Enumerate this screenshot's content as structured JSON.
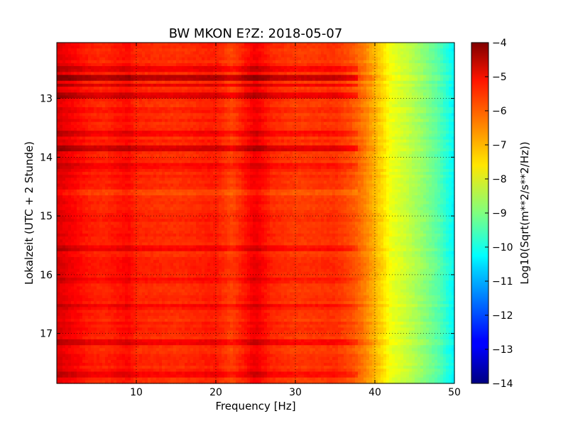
{
  "chart_data": {
    "type": "heatmap",
    "title": "BW MKON E?Z: 2018-05-07",
    "xlabel": "Frequency [Hz]",
    "ylabel": "Lokalzeit (UTC + 2 Stunde)",
    "xlim": [
      0,
      50
    ],
    "ylim": [
      12.05,
      17.85
    ],
    "y_inverted": true,
    "grid": true,
    "grid_style": "dotted",
    "x_ticks": [
      10,
      20,
      30,
      40,
      50
    ],
    "y_ticks": [
      13,
      14,
      15,
      16,
      17
    ],
    "colormap": "jet",
    "colorbar": {
      "label": "Log10(Sqrt(m**2/s**2/Hz))",
      "min": -14,
      "max": -4,
      "ticks": [
        -4,
        -5,
        -6,
        -7,
        -8,
        -9,
        -10,
        -11,
        -12,
        -13,
        -14
      ]
    },
    "spectrum_profile": {
      "frequency_hz": [
        0,
        2,
        4,
        6,
        9,
        10,
        15,
        20,
        22,
        25,
        27,
        30,
        35,
        37,
        38.5,
        40,
        41,
        42,
        44,
        46,
        48,
        50
      ],
      "log10_amplitude": [
        -4.9,
        -5.2,
        -5.5,
        -5.6,
        -5.3,
        -5.6,
        -5.7,
        -5.5,
        -5.9,
        -5.1,
        -5.6,
        -5.8,
        -5.7,
        -6.0,
        -6.4,
        -7.0,
        -7.4,
        -7.9,
        -8.3,
        -8.8,
        -9.4,
        -10.3
      ]
    },
    "horizontal_streaks": [
      {
        "time": 12.5,
        "delta": 0.5
      },
      {
        "time": 12.67,
        "delta": 1.0
      },
      {
        "time": 12.78,
        "delta": 0.6
      },
      {
        "time": 12.96,
        "delta": 0.7
      },
      {
        "time": 13.6,
        "delta": 0.4
      },
      {
        "time": 13.85,
        "delta": 0.8
      },
      {
        "time": 14.15,
        "delta": 0.4
      },
      {
        "time": 14.6,
        "delta": -0.4
      },
      {
        "time": 15.55,
        "delta": 0.4
      },
      {
        "time": 16.1,
        "delta": 0.3
      },
      {
        "time": 16.55,
        "delta": 0.3
      },
      {
        "time": 17.15,
        "delta": 0.4
      },
      {
        "time": 17.72,
        "delta": 0.5
      }
    ]
  }
}
